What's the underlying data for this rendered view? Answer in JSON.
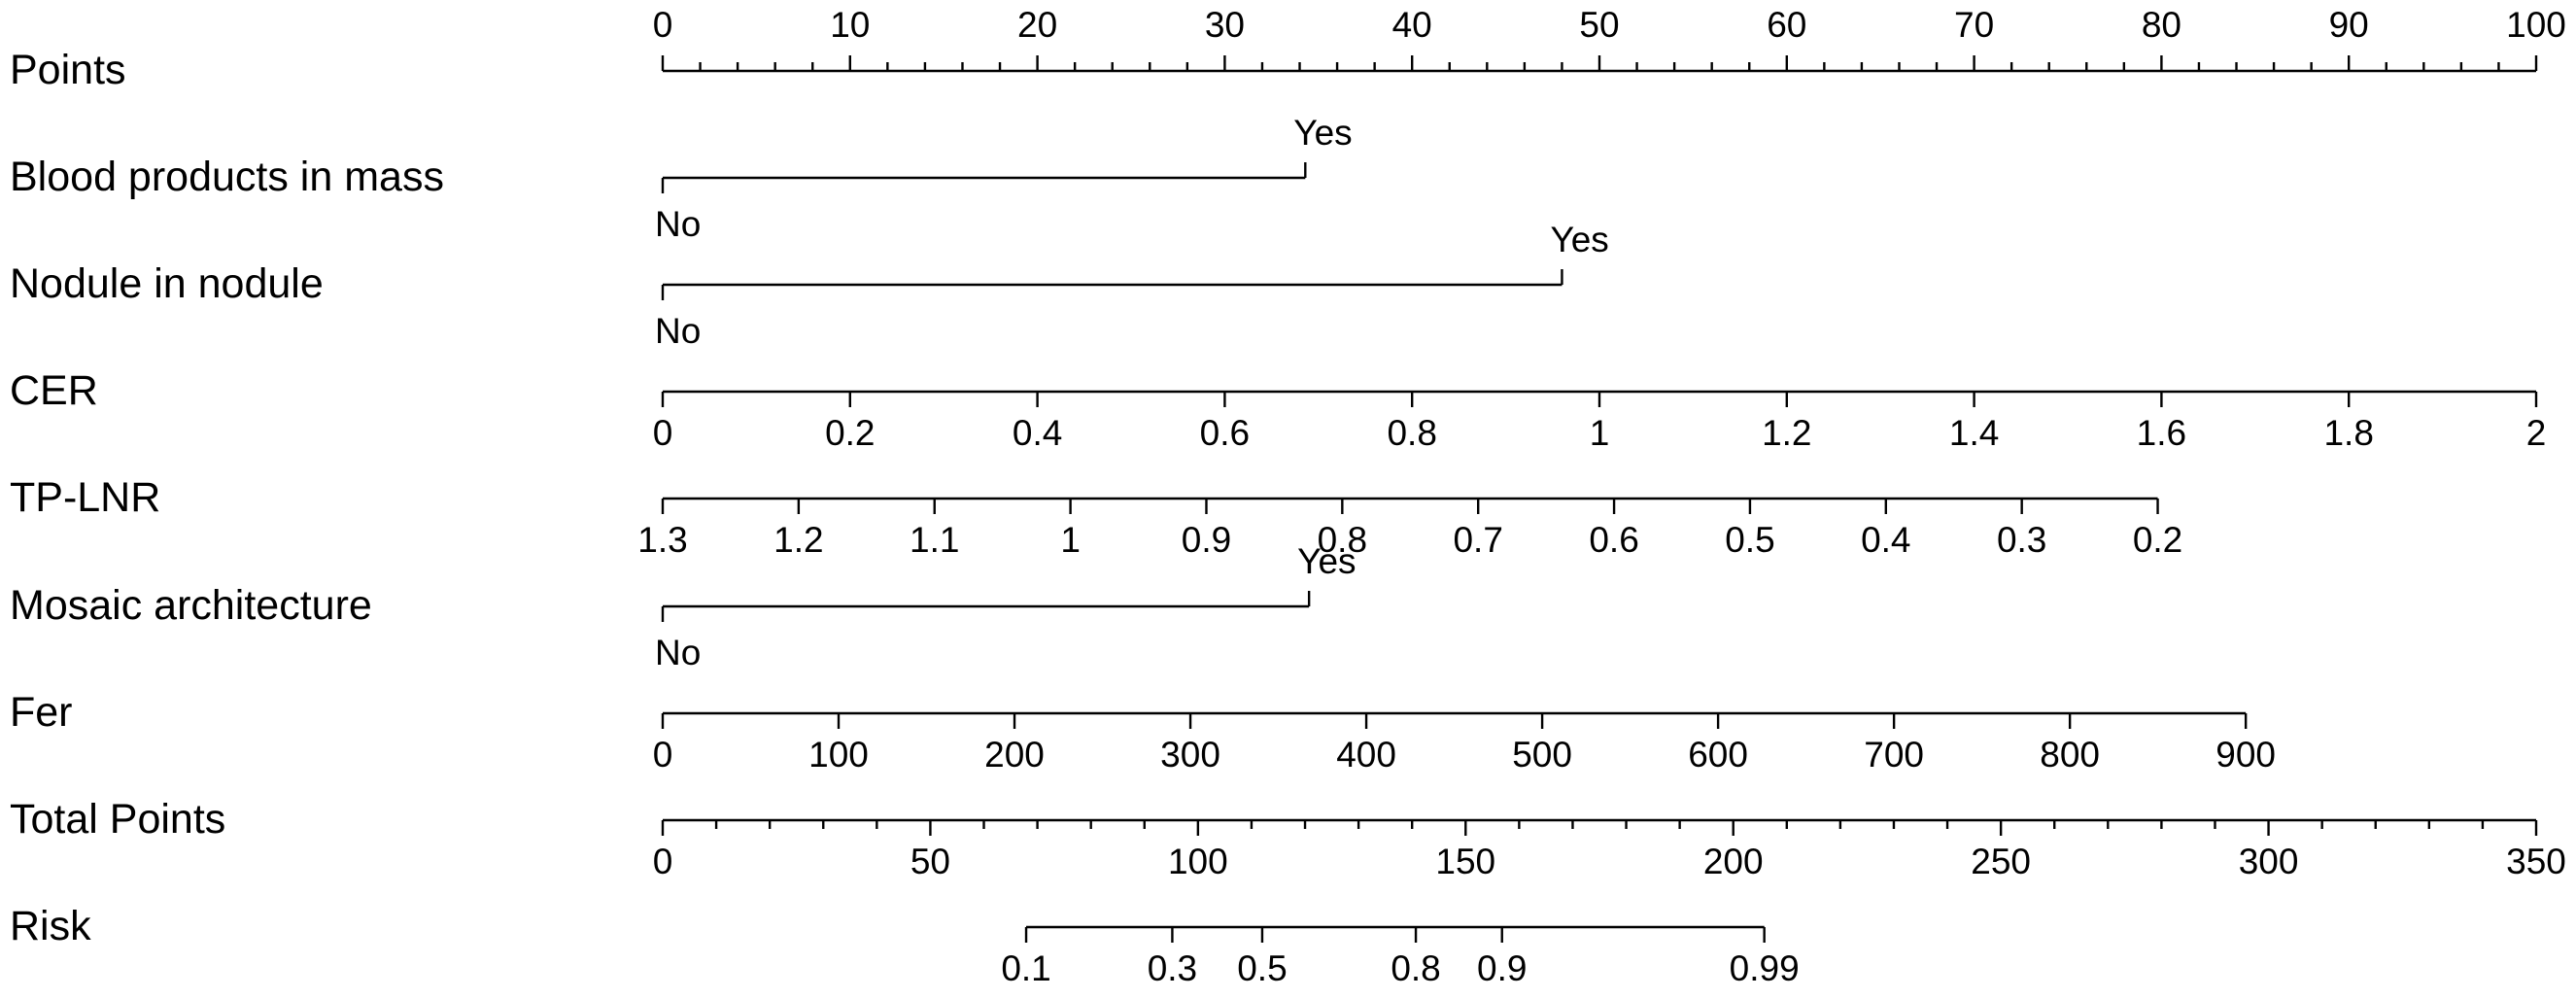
{
  "chart_data": {
    "type": "nomogram",
    "title": "",
    "rows": [
      {
        "label": "Points",
        "kind": "scale",
        "points_range": [
          0,
          100
        ],
        "ticks": [
          {
            "text": "0",
            "value": 0
          },
          {
            "text": "10",
            "value": 10
          },
          {
            "text": "20",
            "value": 20
          },
          {
            "text": "30",
            "value": 30
          },
          {
            "text": "40",
            "value": 40
          },
          {
            "text": "50",
            "value": 50
          },
          {
            "text": "60",
            "value": 60
          },
          {
            "text": "70",
            "value": 70
          },
          {
            "text": "80",
            "value": 80
          },
          {
            "text": "90",
            "value": 90
          },
          {
            "text": "100",
            "value": 100
          }
        ],
        "minor_step": 2,
        "labels_above": true
      },
      {
        "label": "Blood products in mass",
        "kind": "binary",
        "levels": [
          {
            "text": "No",
            "points": 0
          },
          {
            "text": "Yes",
            "points": 34.3
          }
        ]
      },
      {
        "label": "Nodule in nodule",
        "kind": "binary",
        "levels": [
          {
            "text": "No",
            "points": 0
          },
          {
            "text": "Yes",
            "points": 48.0
          }
        ]
      },
      {
        "label": "CER",
        "kind": "scale",
        "points_range": [
          0,
          100
        ],
        "ticks": [
          {
            "text": "0",
            "value": 0
          },
          {
            "text": "0.2",
            "value": 0.2
          },
          {
            "text": "0.4",
            "value": 0.4
          },
          {
            "text": "0.6",
            "value": 0.6
          },
          {
            "text": "0.8",
            "value": 0.8
          },
          {
            "text": "1",
            "value": 1
          },
          {
            "text": "1.2",
            "value": 1.2
          },
          {
            "text": "1.4",
            "value": 1.4
          },
          {
            "text": "1.6",
            "value": 1.6
          },
          {
            "text": "1.8",
            "value": 1.8
          },
          {
            "text": "2",
            "value": 2
          }
        ]
      },
      {
        "label": "TP-LNR",
        "kind": "scale",
        "points_range": [
          0,
          79.8
        ],
        "ticks": [
          {
            "text": "1.3",
            "value": 1.3
          },
          {
            "text": "1.2",
            "value": 1.2
          },
          {
            "text": "1.1",
            "value": 1.1
          },
          {
            "text": "1",
            "value": 1.0
          },
          {
            "text": "0.9",
            "value": 0.9
          },
          {
            "text": "0.8",
            "value": 0.8
          },
          {
            "text": "0.7",
            "value": 0.7
          },
          {
            "text": "0.6",
            "value": 0.6
          },
          {
            "text": "0.5",
            "value": 0.5
          },
          {
            "text": "0.4",
            "value": 0.4
          },
          {
            "text": "0.3",
            "value": 0.3
          },
          {
            "text": "0.2",
            "value": 0.2
          }
        ]
      },
      {
        "label": "Mosaic architecture",
        "kind": "binary",
        "levels": [
          {
            "text": "No",
            "points": 0
          },
          {
            "text": "Yes",
            "points": 34.5
          }
        ]
      },
      {
        "label": "Fer",
        "kind": "scale",
        "points_range": [
          0,
          84.5
        ],
        "ticks": [
          {
            "text": "0",
            "value": 0
          },
          {
            "text": "100",
            "value": 100
          },
          {
            "text": "200",
            "value": 200
          },
          {
            "text": "300",
            "value": 300
          },
          {
            "text": "400",
            "value": 400
          },
          {
            "text": "500",
            "value": 500
          },
          {
            "text": "600",
            "value": 600
          },
          {
            "text": "700",
            "value": 700
          },
          {
            "text": "800",
            "value": 800
          },
          {
            "text": "900",
            "value": 900
          }
        ]
      },
      {
        "label": "Total Points",
        "kind": "scale",
        "points_range": [
          0,
          100
        ],
        "ticks": [
          {
            "text": "0",
            "value": 0
          },
          {
            "text": "50",
            "value": 50
          },
          {
            "text": "100",
            "value": 100
          },
          {
            "text": "150",
            "value": 150
          },
          {
            "text": "200",
            "value": 200
          },
          {
            "text": "250",
            "value": 250
          },
          {
            "text": "300",
            "value": 300
          },
          {
            "text": "350",
            "value": 350
          }
        ],
        "minor_step": 10
      },
      {
        "label": "Risk",
        "kind": "scale",
        "points_range": [
          19.4,
          58.8
        ],
        "ticks": [
          {
            "text": "0.1",
            "value": 0.1,
            "points": 19.4
          },
          {
            "text": "0.3",
            "value": 0.3,
            "points": 27.2
          },
          {
            "text": "0.5",
            "value": 0.5,
            "points": 32.0
          },
          {
            "text": "0.8",
            "value": 0.8,
            "points": 40.2
          },
          {
            "text": "0.9",
            "value": 0.9,
            "points": 44.8
          },
          {
            "text": "0.99",
            "value": 0.99,
            "points": 58.8
          }
        ]
      }
    ]
  }
}
